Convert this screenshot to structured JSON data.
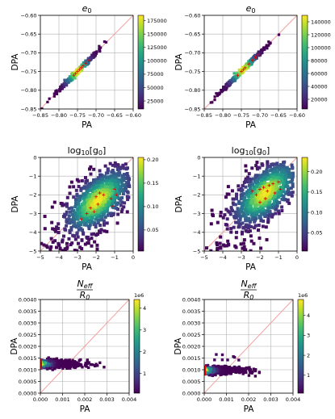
{
  "chart_data": [
    {
      "type": "scatter",
      "title_base": "e",
      "title_sub": "0",
      "xlabel": "PA",
      "ylabel": "DPA",
      "xlim": [
        -0.85,
        -0.6
      ],
      "ylim": [
        -0.85,
        -0.6
      ],
      "xticks": [
        "−0.85",
        "−0.80",
        "−0.75",
        "−0.70",
        "−0.65",
        "−0.60"
      ],
      "yticks": [
        "−0.85",
        "−0.80",
        "−0.75",
        "−0.70",
        "−0.65",
        "−0.60"
      ],
      "colorbar": {
        "range": [
          10000,
          185000
        ],
        "ticks": [
          "25000",
          "50000",
          "75000",
          "100000",
          "125000",
          "150000",
          "175000"
        ],
        "tick_values": [
          25000,
          50000,
          75000,
          100000,
          125000,
          150000,
          175000
        ],
        "multiplier": ""
      },
      "grid": true,
      "diagonal": true,
      "highlight_points": [
        [
          -0.755,
          -0.755
        ],
        [
          -0.75,
          -0.75
        ],
        [
          -0.745,
          -0.745
        ],
        [
          -0.74,
          -0.74
        ],
        [
          -0.735,
          -0.735
        ],
        [
          -0.76,
          -0.76
        ],
        [
          -0.728,
          -0.728
        ],
        [
          -0.72,
          -0.72
        ]
      ]
    },
    {
      "type": "scatter",
      "title_base": "e",
      "title_sub": "0",
      "xlabel": "PA",
      "ylabel": "DPA",
      "xlim": [
        -0.85,
        -0.6
      ],
      "ylim": [
        -0.85,
        -0.6
      ],
      "xticks": [
        "−0.85",
        "−0.80",
        "−0.75",
        "−0.70",
        "−0.65",
        "−0.60"
      ],
      "yticks": [
        "−0.85",
        "−0.80",
        "−0.75",
        "−0.70",
        "−0.65",
        "−0.60"
      ],
      "colorbar": {
        "range": [
          5000,
          150000
        ],
        "ticks": [
          "20000",
          "40000",
          "60000",
          "80000",
          "100000",
          "120000",
          "140000"
        ],
        "tick_values": [
          20000,
          40000,
          60000,
          80000,
          100000,
          120000,
          140000
        ],
        "multiplier": ""
      },
      "grid": true,
      "diagonal": true,
      "highlight_points": [
        [
          -0.76,
          -0.76
        ],
        [
          -0.75,
          -0.75
        ],
        [
          -0.745,
          -0.745
        ],
        [
          -0.74,
          -0.74
        ],
        [
          -0.73,
          -0.73
        ],
        [
          -0.72,
          -0.72
        ],
        [
          -0.712,
          -0.712
        ],
        [
          -0.705,
          -0.705
        ]
      ]
    },
    {
      "type": "scatter",
      "title_base": "log",
      "title_sub": "10",
      "title_rest": "[g",
      "title_sub2": "0",
      "title_end": "]",
      "xlabel": "PA",
      "ylabel": "DPA",
      "xlim": [
        -5,
        0
      ],
      "ylim": [
        -5,
        0
      ],
      "xticks": [
        "−5",
        "−4",
        "−3",
        "−2",
        "−1",
        "0"
      ],
      "yticks": [
        "−5",
        "−4",
        "−3",
        "−2",
        "−1",
        "0"
      ],
      "colorbar": {
        "range": [
          0.005,
          0.205
        ],
        "ticks": [
          "0.05",
          "0.10",
          "0.15",
          "0.20"
        ],
        "tick_values": [
          0.05,
          0.1,
          0.15,
          0.2
        ],
        "multiplier": ""
      },
      "grid": true,
      "diagonal": true,
      "highlight_points": [
        [
          -2.1,
          -2.9
        ],
        [
          -1.9,
          -2.5
        ],
        [
          -2.0,
          -2.1
        ],
        [
          -1.8,
          -1.9
        ],
        [
          -1.6,
          -2.0
        ],
        [
          -1.2,
          -2.2
        ],
        [
          -0.9,
          -2.0
        ],
        [
          -2.8,
          -3.3
        ],
        [
          -2.5,
          -3.0
        ],
        [
          -1.1,
          -2.6
        ],
        [
          -1.0,
          -1.7
        ],
        [
          -2.3,
          -2.7
        ]
      ]
    },
    {
      "type": "scatter",
      "title_base": "log",
      "title_sub": "10",
      "title_rest": "[g",
      "title_sub2": "0",
      "title_end": "]",
      "xlabel": "PA",
      "ylabel": "DPA",
      "xlim": [
        -5,
        0
      ],
      "ylim": [
        -5,
        0
      ],
      "xticks": [
        "−5",
        "−4",
        "−3",
        "−2",
        "−1",
        "0"
      ],
      "yticks": [
        "−5",
        "−4",
        "−3",
        "−2",
        "−1",
        "0"
      ],
      "colorbar": {
        "range": [
          0.005,
          0.235
        ],
        "ticks": [
          "0.05",
          "0.10",
          "0.15",
          "0.20"
        ],
        "tick_values": [
          0.05,
          0.1,
          0.15,
          0.2
        ],
        "multiplier": ""
      },
      "grid": true,
      "diagonal": true,
      "highlight_points": [
        [
          -2.0,
          -1.7
        ],
        [
          -1.8,
          -1.6
        ],
        [
          -1.6,
          -1.8
        ],
        [
          -1.5,
          -1.5
        ],
        [
          -1.3,
          -1.4
        ],
        [
          -2.2,
          -2.0
        ],
        [
          -1.2,
          -1.9
        ],
        [
          -0.9,
          -1.7
        ],
        [
          -2.4,
          -1.8
        ],
        [
          -1.7,
          -2.2
        ],
        [
          -1.0,
          -1.3
        ],
        [
          -2.0,
          -2.4
        ]
      ]
    },
    {
      "type": "scatter",
      "title_frac": true,
      "title_num": "N",
      "title_num_sub": "eff",
      "title_den": "R",
      "title_den_sub": "0",
      "xlabel": "PA",
      "ylabel": "DPA",
      "xlim": [
        0,
        0.004
      ],
      "ylim": [
        0,
        0.004
      ],
      "xticks": [
        "0.000",
        "0.001",
        "0.002",
        "0.003",
        "0.004"
      ],
      "yticks": [
        "0.0000",
        "0.0005",
        "0.0010",
        "0.0015",
        "0.0020",
        "0.0025",
        "0.0030",
        "0.0035",
        "0.0040"
      ],
      "colorbar": {
        "range": [
          0.1,
          4.4
        ],
        "ticks": [
          "1",
          "2",
          "3",
          "4"
        ],
        "tick_values": [
          1,
          2,
          3,
          4
        ],
        "multiplier": "1e6"
      },
      "grid": true,
      "diagonal": true,
      "highlight_points": [
        [
          0.0,
          0.0012
        ],
        [
          0.0,
          0.0011
        ],
        [
          0.0,
          0.0013
        ],
        [
          0.0,
          0.00125
        ],
        [
          0.0,
          0.00115
        ]
      ]
    },
    {
      "type": "scatter",
      "title_frac": true,
      "title_num": "N",
      "title_num_sub": "eff",
      "title_den": "R",
      "title_den_sub": "0",
      "xlabel": "PA",
      "ylabel": "DPA",
      "xlim": [
        0,
        0.004
      ],
      "ylim": [
        0,
        0.004
      ],
      "xticks": [
        "0.000",
        "0.001",
        "0.002",
        "0.003",
        "0.004"
      ],
      "yticks": [
        "0.0000",
        "0.0005",
        "0.0010",
        "0.0015",
        "0.0020",
        "0.0025",
        "0.0030",
        "0.0035",
        "0.0040"
      ],
      "colorbar": {
        "range": [
          0.1,
          4.8
        ],
        "ticks": [
          "1",
          "2",
          "3",
          "4"
        ],
        "tick_values": [
          1,
          2,
          3,
          4
        ],
        "multiplier": "1e6"
      },
      "grid": true,
      "diagonal": true,
      "highlight_points": [
        [
          0.0,
          0.0009
        ],
        [
          0.0,
          0.00095
        ],
        [
          0.0,
          0.001
        ],
        [
          0.0,
          0.00085
        ],
        [
          0.0,
          0.0008
        ]
      ]
    }
  ]
}
